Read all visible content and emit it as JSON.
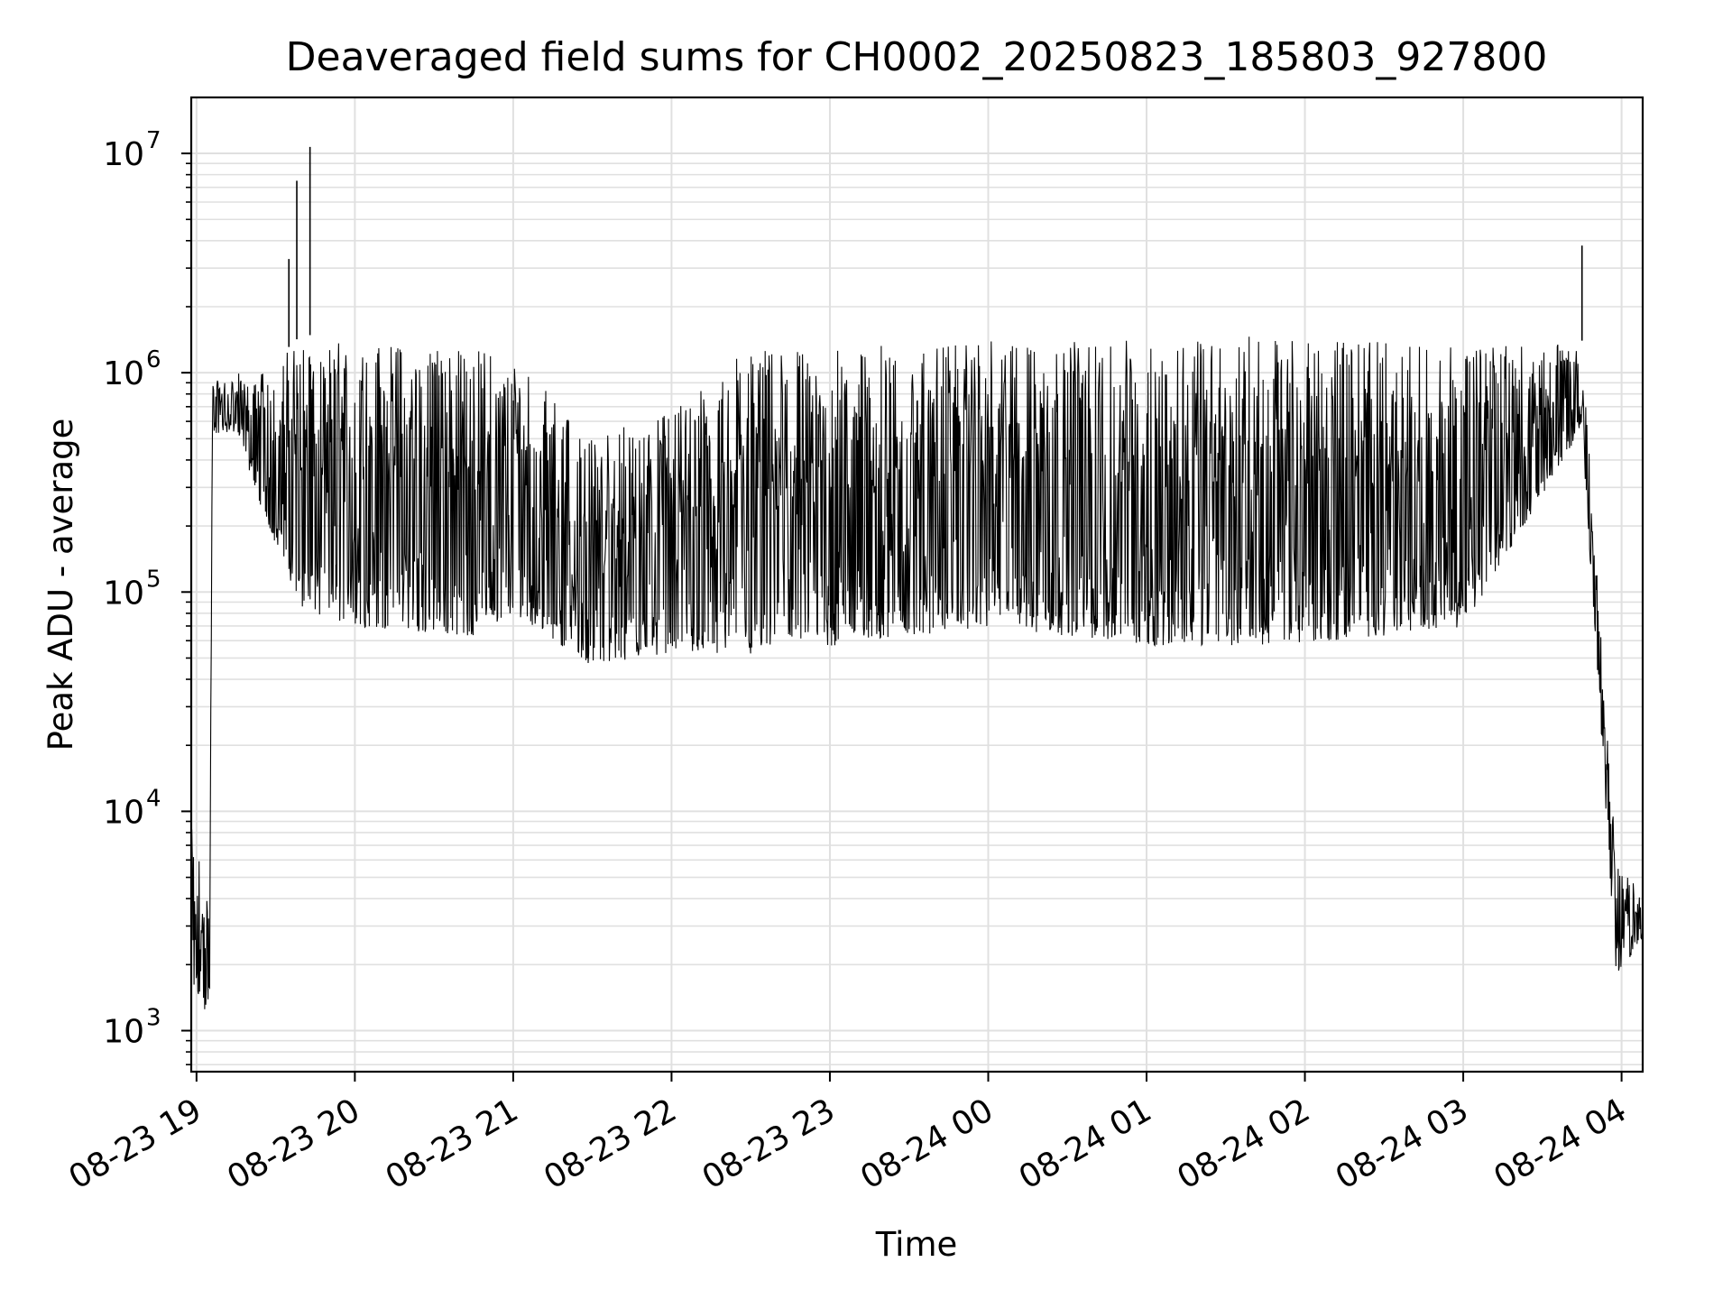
{
  "chart_data": {
    "type": "line",
    "title": "Deaveraged field sums for CH0002_20250823_185803_927800",
    "xlabel": "Time",
    "ylabel": "Peak ADU - average",
    "y_scale": "log",
    "ylim": [
      650,
      18000000
    ],
    "xlim": [
      "2025-08-23 18:58",
      "2025-08-24 04:08"
    ],
    "grid": "on",
    "line_color": "#000000",
    "grid_color": "#e0e0e0",
    "x_ticks": [
      {
        "t": "2025-08-23 19:00",
        "label": "08-23 19"
      },
      {
        "t": "2025-08-23 20:00",
        "label": "08-23 20"
      },
      {
        "t": "2025-08-23 21:00",
        "label": "08-23 21"
      },
      {
        "t": "2025-08-23 22:00",
        "label": "08-23 22"
      },
      {
        "t": "2025-08-23 23:00",
        "label": "08-23 23"
      },
      {
        "t": "2025-08-24 00:00",
        "label": "08-24 00"
      },
      {
        "t": "2025-08-24 01:00",
        "label": "08-24 01"
      },
      {
        "t": "2025-08-24 02:00",
        "label": "08-24 02"
      },
      {
        "t": "2025-08-24 03:00",
        "label": "08-24 03"
      },
      {
        "t": "2025-08-24 04:00",
        "label": "08-24 04"
      }
    ],
    "y_ticks": [
      {
        "v": 1000,
        "base": "10",
        "exp": "3"
      },
      {
        "v": 10000,
        "base": "10",
        "exp": "4"
      },
      {
        "v": 100000,
        "base": "10",
        "exp": "5"
      },
      {
        "v": 1000000,
        "base": "10",
        "exp": "6"
      },
      {
        "v": 10000000,
        "base": "10",
        "exp": "7"
      }
    ],
    "series_profile": [
      {
        "t": "2025-08-23 18:58",
        "low": 1200,
        "high": 8500
      },
      {
        "t": "2025-08-23 19:05",
        "low": 1000,
        "high": 3800
      },
      {
        "t": "2025-08-23 19:06",
        "low": 500000,
        "high": 900000
      },
      {
        "t": "2025-08-23 19:15",
        "low": 500000,
        "high": 1000000
      },
      {
        "t": "2025-08-23 19:25",
        "low": 200000,
        "high": 1000000
      },
      {
        "t": "2025-08-23 19:40",
        "low": 60000,
        "high": 1500000
      },
      {
        "t": "2025-08-23 20:00",
        "low": 50000,
        "high": 1400000
      },
      {
        "t": "2025-08-23 20:45",
        "low": 45000,
        "high": 1300000
      },
      {
        "t": "2025-08-23 21:00",
        "low": 60000,
        "high": 1200000
      },
      {
        "t": "2025-08-23 21:30",
        "low": 35000,
        "high": 500000
      },
      {
        "t": "2025-08-23 22:00",
        "low": 40000,
        "high": 700000
      },
      {
        "t": "2025-08-23 22:30",
        "low": 35000,
        "high": 1300000
      },
      {
        "t": "2025-08-23 23:00",
        "low": 40000,
        "high": 1300000
      },
      {
        "t": "2025-08-24 00:00",
        "low": 50000,
        "high": 1400000
      },
      {
        "t": "2025-08-24 01:00",
        "low": 40000,
        "high": 1400000
      },
      {
        "t": "2025-08-24 02:00",
        "low": 40000,
        "high": 1500000
      },
      {
        "t": "2025-08-24 03:00",
        "low": 50000,
        "high": 1300000
      },
      {
        "t": "2025-08-24 03:45",
        "low": 500000,
        "high": 1400000
      },
      {
        "t": "2025-08-24 03:58",
        "low": 1500,
        "high": 6000
      },
      {
        "t": "2025-08-24 04:08",
        "low": 2500,
        "high": 4500
      }
    ],
    "spikes": [
      {
        "t": "2025-08-23 19:35",
        "value": 3300000
      },
      {
        "t": "2025-08-23 19:38",
        "value": 7500000
      },
      {
        "t": "2025-08-23 19:43",
        "value": 10700000
      },
      {
        "t": "2025-08-24 03:45",
        "value": 3800000
      }
    ]
  }
}
